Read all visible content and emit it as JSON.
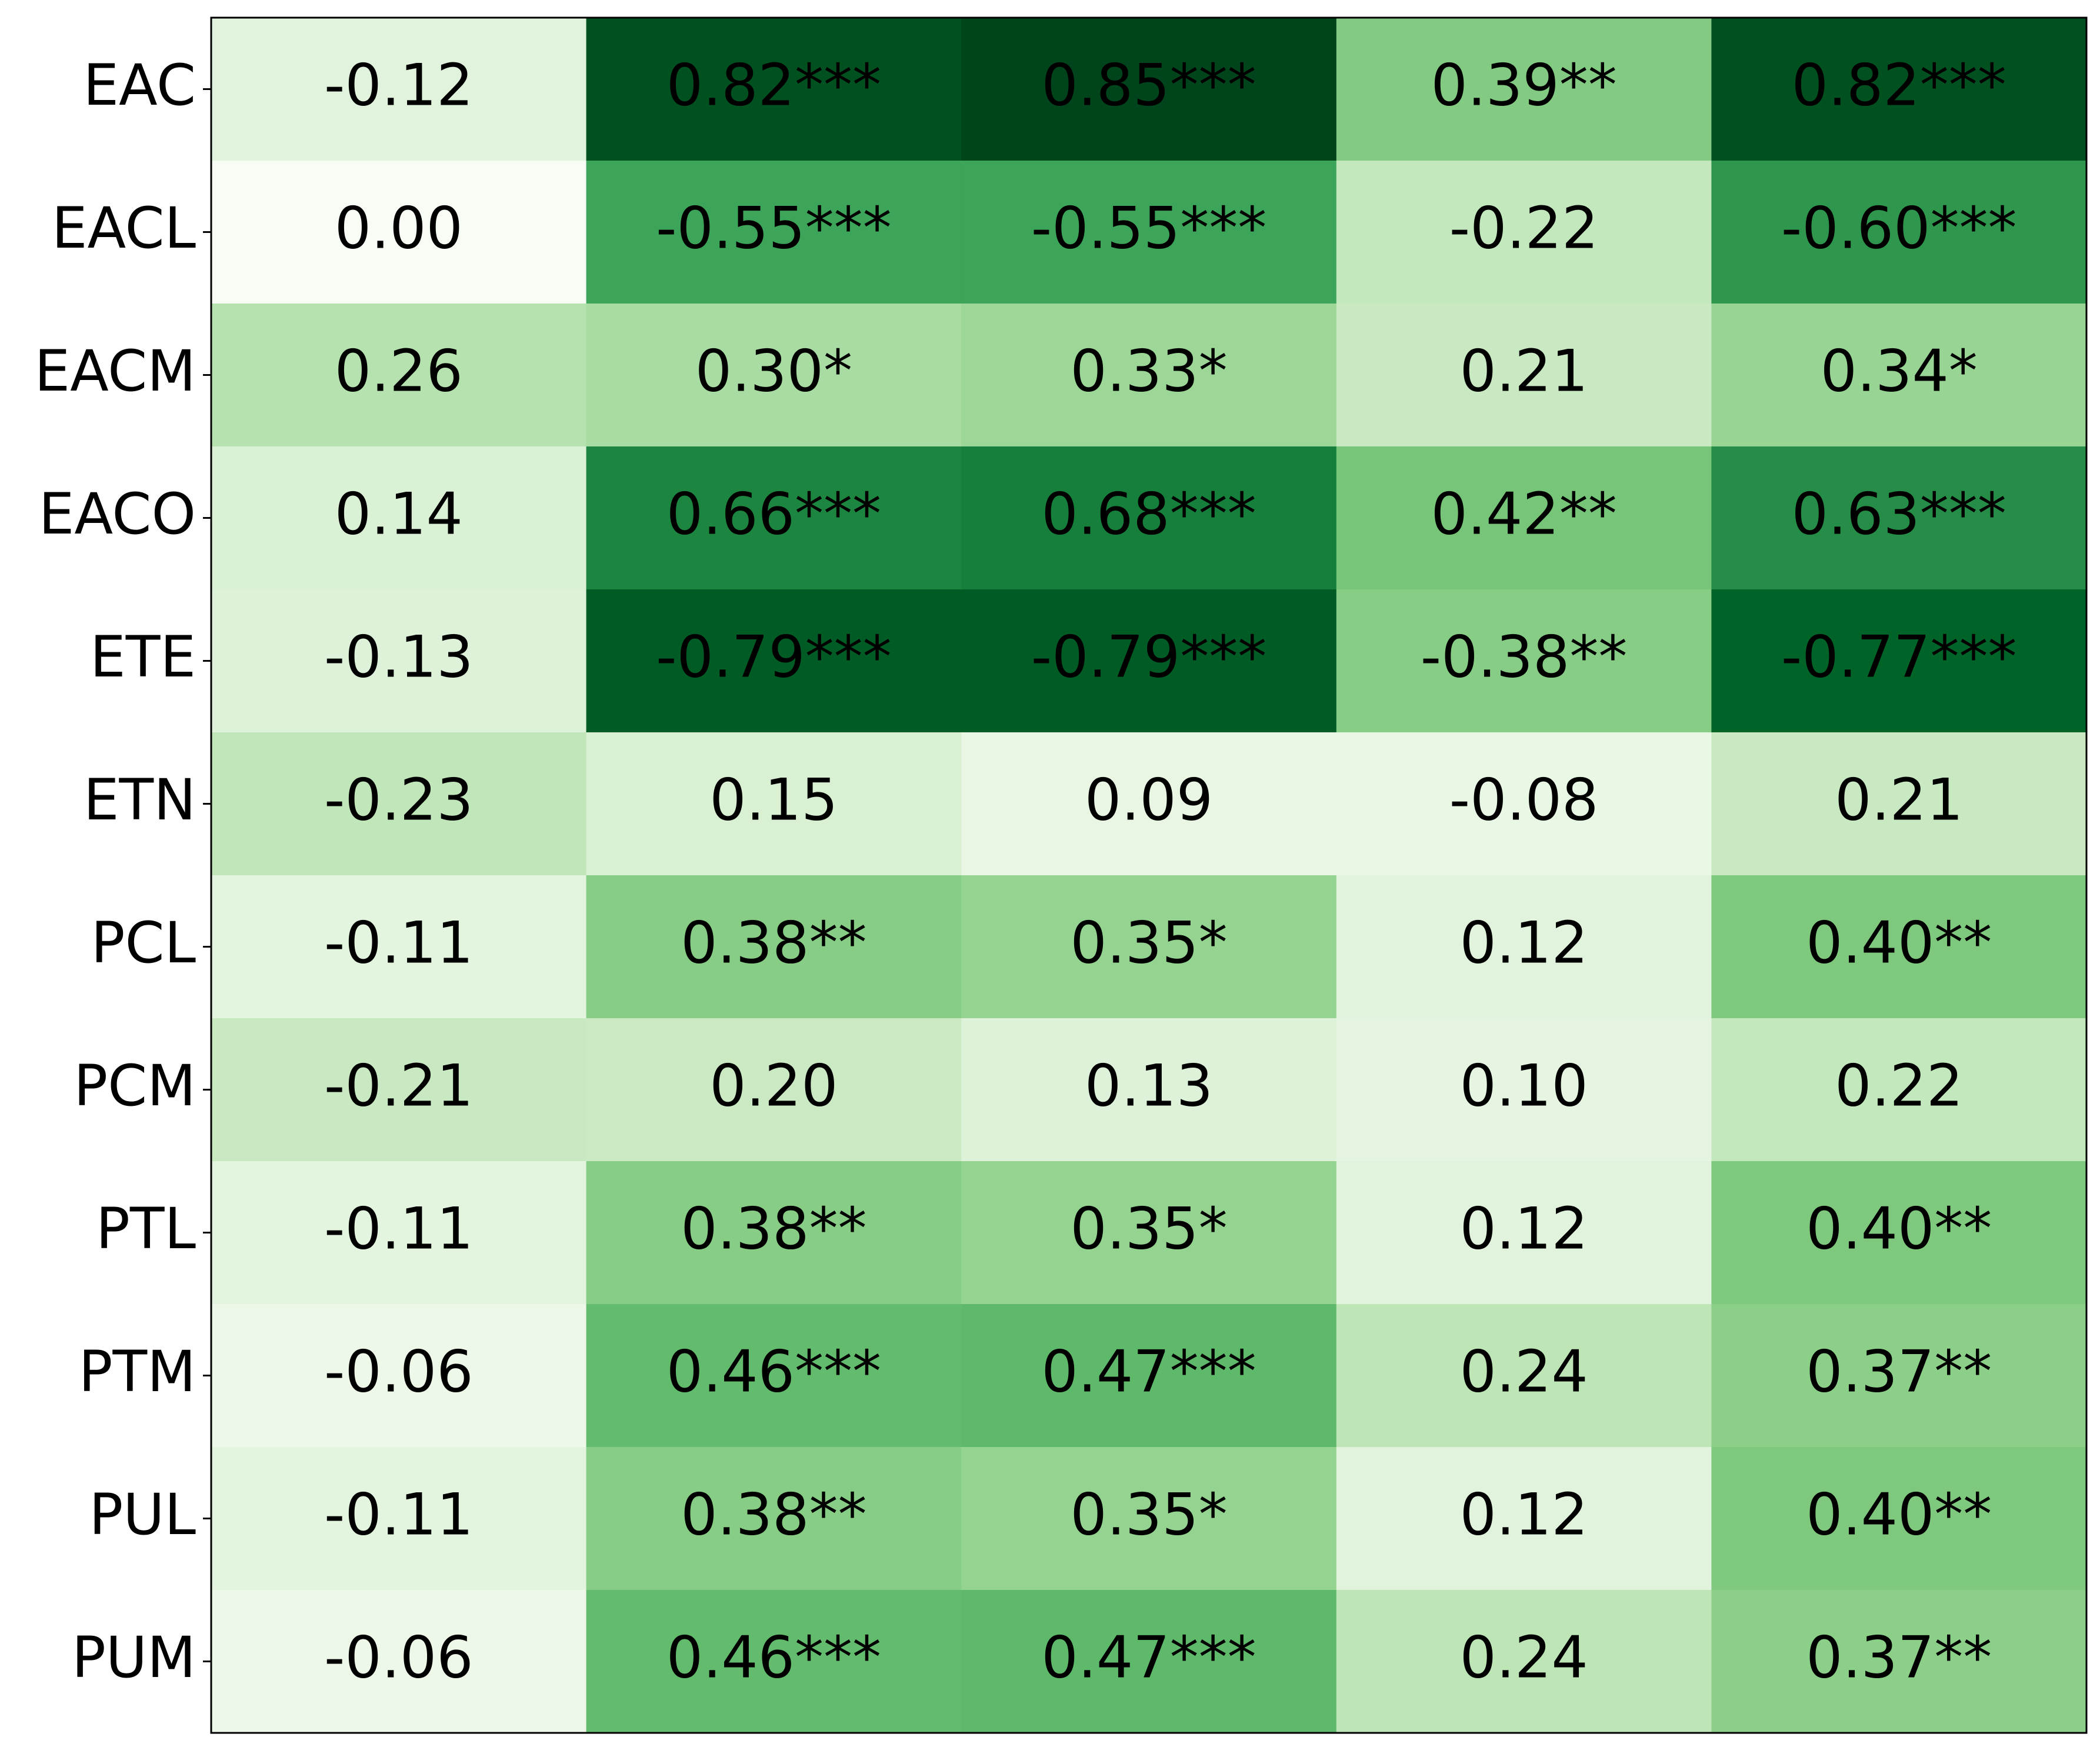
{
  "chart_data": {
    "type": "heatmap",
    "rows": [
      "EAC",
      "EACL",
      "EACM",
      "EACO",
      "ETE",
      "ETN",
      "PCL",
      "PCM",
      "PTL",
      "PTM",
      "PUL",
      "PUM"
    ],
    "values": [
      [
        -0.12,
        0.82,
        0.85,
        0.39,
        0.82
      ],
      [
        0.0,
        -0.55,
        -0.55,
        -0.22,
        -0.6
      ],
      [
        0.26,
        0.3,
        0.33,
        0.21,
        0.34
      ],
      [
        0.14,
        0.66,
        0.68,
        0.42,
        0.63
      ],
      [
        -0.13,
        -0.79,
        -0.79,
        -0.38,
        -0.77
      ],
      [
        -0.23,
        0.15,
        0.09,
        -0.08,
        0.21
      ],
      [
        -0.11,
        0.38,
        0.35,
        0.12,
        0.4
      ],
      [
        -0.21,
        0.2,
        0.13,
        0.1,
        0.22
      ],
      [
        -0.11,
        0.38,
        0.35,
        0.12,
        0.4
      ],
      [
        -0.06,
        0.46,
        0.47,
        0.24,
        0.37
      ],
      [
        -0.11,
        0.38,
        0.35,
        0.12,
        0.4
      ],
      [
        -0.06,
        0.46,
        0.47,
        0.24,
        0.37
      ]
    ],
    "value_labels": [
      [
        "-0.12",
        "0.82***",
        "0.85***",
        "0.39**",
        "0.82***"
      ],
      [
        "0.00",
        "-0.55***",
        "-0.55***",
        "-0.22",
        "-0.60***"
      ],
      [
        "0.26",
        "0.30*",
        "0.33*",
        "0.21",
        "0.34*"
      ],
      [
        "0.14",
        "0.66***",
        "0.68***",
        "0.42**",
        "0.63***"
      ],
      [
        "-0.13",
        "-0.79***",
        "-0.79***",
        "-0.38**",
        "-0.77***"
      ],
      [
        "-0.23",
        "0.15",
        "0.09",
        "-0.08",
        "0.21"
      ],
      [
        "-0.11",
        "0.38**",
        "0.35*",
        "0.12",
        "0.40**"
      ],
      [
        "-0.21",
        "0.20",
        "0.13",
        "0.10",
        "0.22"
      ],
      [
        "-0.11",
        "0.38**",
        "0.35*",
        "0.12",
        "0.40**"
      ],
      [
        "-0.06",
        "0.46***",
        "0.47***",
        "0.24",
        "0.37**"
      ],
      [
        "-0.11",
        "0.38**",
        "0.35*",
        "0.12",
        "0.40**"
      ],
      [
        "-0.06",
        "0.46***",
        "0.47***",
        "0.24",
        "0.37**"
      ]
    ],
    "colormap": [
      "#f7fcf5",
      "#e5f5e0",
      "#c7e9c0",
      "#a1d99b",
      "#74c476",
      "#41ab5d",
      "#238b45",
      "#006d2c",
      "#00441b"
    ],
    "color_by": "absolute"
  }
}
